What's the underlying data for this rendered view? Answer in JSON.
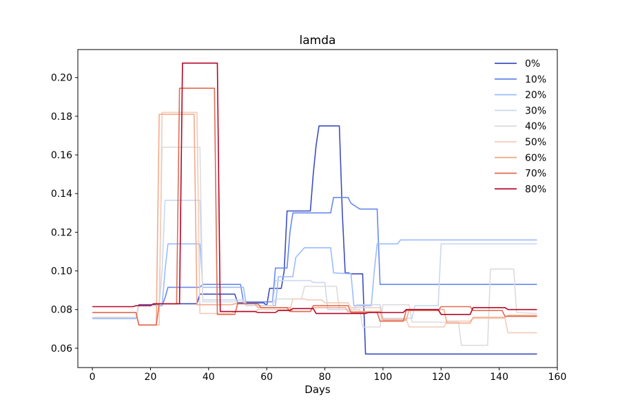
{
  "chart_data": {
    "type": "line",
    "title": "lamda",
    "xlabel": "Days",
    "ylabel": "",
    "xlim": [
      -5,
      160
    ],
    "ylim": [
      0.05,
      0.2145
    ],
    "xticks": [
      0,
      20,
      40,
      60,
      80,
      100,
      120,
      140,
      160
    ],
    "yticks": [
      0.06,
      0.08,
      0.1,
      0.12,
      0.14,
      0.16,
      0.18,
      0.2
    ],
    "ytick_labels": [
      "0.06",
      "0.08",
      "0.10",
      "0.12",
      "0.14",
      "0.16",
      "0.18",
      "0.20"
    ],
    "grid": false,
    "legend_position": "top-right",
    "series": [
      {
        "name": "0%",
        "color": "#3b4cc0",
        "x": [
          0,
          15,
          16,
          22,
          23,
          25,
          26,
          36,
          37,
          49,
          50,
          59,
          60,
          61,
          62,
          65,
          66,
          67,
          75,
          76,
          77,
          78,
          85,
          86,
          87,
          88,
          89,
          90,
          91,
          92,
          93,
          94,
          153
        ],
        "y": [
          0.0755,
          0.0755,
          0.0825,
          0.0825,
          0.083,
          0.083,
          0.083,
          0.083,
          0.088,
          0.088,
          0.0835,
          0.0835,
          0.082,
          0.091,
          0.091,
          0.091,
          0.1,
          0.131,
          0.131,
          0.15,
          0.165,
          0.175,
          0.175,
          0.13,
          0.099,
          0.099,
          0.0985,
          0.0985,
          0.0985,
          0.0985,
          0.0985,
          0.057,
          0.057
        ]
      },
      {
        "name": "10%",
        "color": "#6788ee",
        "x": [
          0,
          15,
          16,
          22,
          23,
          24,
          25,
          26,
          37,
          38,
          51,
          52,
          53,
          62,
          63,
          67,
          68,
          69,
          82,
          83,
          88,
          89,
          92,
          93,
          98,
          99,
          153
        ],
        "y": [
          0.0755,
          0.0755,
          0.082,
          0.082,
          0.082,
          0.082,
          0.086,
          0.0915,
          0.0915,
          0.093,
          0.093,
          0.084,
          0.084,
          0.084,
          0.1015,
          0.1015,
          0.12,
          0.13,
          0.13,
          0.138,
          0.138,
          0.135,
          0.132,
          0.132,
          0.132,
          0.093,
          0.093
        ]
      },
      {
        "name": "20%",
        "color": "#9abbff",
        "x": [
          0,
          15,
          16,
          22,
          23,
          24,
          25,
          26,
          37,
          38,
          52,
          53,
          63,
          64,
          69,
          70,
          73,
          74,
          82,
          83,
          89,
          90,
          96,
          97,
          98,
          105,
          106,
          153
        ],
        "y": [
          0.0755,
          0.0755,
          0.082,
          0.082,
          0.082,
          0.082,
          0.1,
          0.114,
          0.114,
          0.0915,
          0.0915,
          0.082,
          0.082,
          0.097,
          0.097,
          0.107,
          0.112,
          0.112,
          0.112,
          0.099,
          0.0985,
          0.082,
          0.082,
          0.1,
          0.114,
          0.114,
          0.116,
          0.116
        ]
      },
      {
        "name": "30%",
        "color": "#c9d7f0",
        "x": [
          0,
          15,
          16,
          22,
          23,
          24,
          25,
          37,
          38,
          52,
          53,
          62,
          63,
          68,
          69,
          75,
          76,
          80,
          81,
          90,
          91,
          99,
          100,
          110,
          111,
          119,
          120,
          153
        ],
        "y": [
          0.076,
          0.076,
          0.082,
          0.082,
          0.082,
          0.1,
          0.1365,
          0.1365,
          0.085,
          0.085,
          0.082,
          0.082,
          0.095,
          0.095,
          0.095,
          0.095,
          0.094,
          0.094,
          0.08,
          0.08,
          0.0825,
          0.0825,
          0.0755,
          0.0755,
          0.082,
          0.082,
          0.114,
          0.114
        ]
      },
      {
        "name": "40%",
        "color": "#dddcdc",
        "x": [
          0,
          15,
          16,
          22,
          23,
          24,
          36,
          37,
          38,
          52,
          53,
          62,
          63,
          72,
          73,
          84,
          85,
          92,
          93,
          99,
          100,
          109,
          110,
          126,
          127,
          136,
          137,
          145,
          146,
          153
        ],
        "y": [
          0.076,
          0.076,
          0.082,
          0.082,
          0.082,
          0.164,
          0.164,
          0.164,
          0.084,
          0.084,
          0.082,
          0.082,
          0.0855,
          0.0855,
          0.092,
          0.092,
          0.08,
          0.08,
          0.071,
          0.071,
          0.0825,
          0.0825,
          0.0735,
          0.0735,
          0.0615,
          0.0615,
          0.101,
          0.101,
          0.0785,
          0.078
        ]
      },
      {
        "name": "50%",
        "color": "#f2cbb7",
        "x": [
          0,
          15,
          16,
          22,
          23,
          24,
          35,
          36,
          37,
          48,
          49,
          56,
          57,
          68,
          69,
          73,
          74,
          79,
          80,
          88,
          89,
          99,
          100,
          108,
          109,
          113,
          114,
          121,
          122,
          130,
          131,
          142,
          143,
          153
        ],
        "y": [
          0.0785,
          0.0785,
          0.072,
          0.072,
          0.072,
          0.182,
          0.182,
          0.182,
          0.078,
          0.078,
          0.079,
          0.079,
          0.08,
          0.08,
          0.0855,
          0.0855,
          0.085,
          0.085,
          0.0835,
          0.0835,
          0.081,
          0.081,
          0.075,
          0.075,
          0.071,
          0.071,
          0.071,
          0.071,
          0.074,
          0.074,
          0.0755,
          0.0755,
          0.068,
          0.068
        ]
      },
      {
        "name": "60%",
        "color": "#f7a889",
        "x": [
          0,
          15,
          16,
          22,
          23,
          34,
          35,
          36,
          37,
          48,
          49,
          56,
          57,
          68,
          69,
          75,
          76,
          87,
          88,
          99,
          100,
          108,
          109,
          121,
          122,
          130,
          131,
          142,
          143,
          153
        ],
        "y": [
          0.0785,
          0.0785,
          0.072,
          0.072,
          0.181,
          0.181,
          0.181,
          0.0825,
          0.0825,
          0.0825,
          0.083,
          0.083,
          0.081,
          0.081,
          0.079,
          0.079,
          0.081,
          0.081,
          0.079,
          0.079,
          0.0745,
          0.0745,
          0.08,
          0.08,
          0.073,
          0.073,
          0.076,
          0.076,
          0.077,
          0.077
        ]
      },
      {
        "name": "70%",
        "color": "#e26952",
        "x": [
          0,
          15,
          16,
          22,
          23,
          29,
          30,
          41,
          42,
          43,
          49,
          50,
          57,
          58,
          67,
          68,
          75,
          76,
          88,
          89,
          98,
          99,
          107,
          108,
          119,
          120,
          130,
          131,
          141,
          142,
          153
        ],
        "y": [
          0.0785,
          0.0785,
          0.072,
          0.072,
          0.083,
          0.083,
          0.1945,
          0.1945,
          0.1945,
          0.0775,
          0.0775,
          0.083,
          0.083,
          0.081,
          0.081,
          0.079,
          0.079,
          0.082,
          0.082,
          0.0785,
          0.0785,
          0.074,
          0.074,
          0.0795,
          0.0795,
          0.0815,
          0.0815,
          0.0795,
          0.0795,
          0.0765,
          0.0765
        ]
      },
      {
        "name": "80%",
        "color": "#b40426",
        "x": [
          0,
          14,
          15,
          20,
          21,
          30,
          31,
          43,
          44,
          56,
          57,
          63,
          64,
          68,
          69,
          76,
          77,
          81,
          82,
          94,
          95,
          107,
          108,
          119,
          120,
          130,
          131,
          142,
          143,
          153
        ],
        "y": [
          0.0815,
          0.0815,
          0.082,
          0.082,
          0.083,
          0.083,
          0.2075,
          0.2075,
          0.079,
          0.079,
          0.0785,
          0.0785,
          0.0795,
          0.0795,
          0.0805,
          0.0805,
          0.078,
          0.078,
          0.078,
          0.078,
          0.0785,
          0.0785,
          0.08,
          0.08,
          0.0775,
          0.0775,
          0.081,
          0.081,
          0.08,
          0.08
        ]
      }
    ]
  }
}
